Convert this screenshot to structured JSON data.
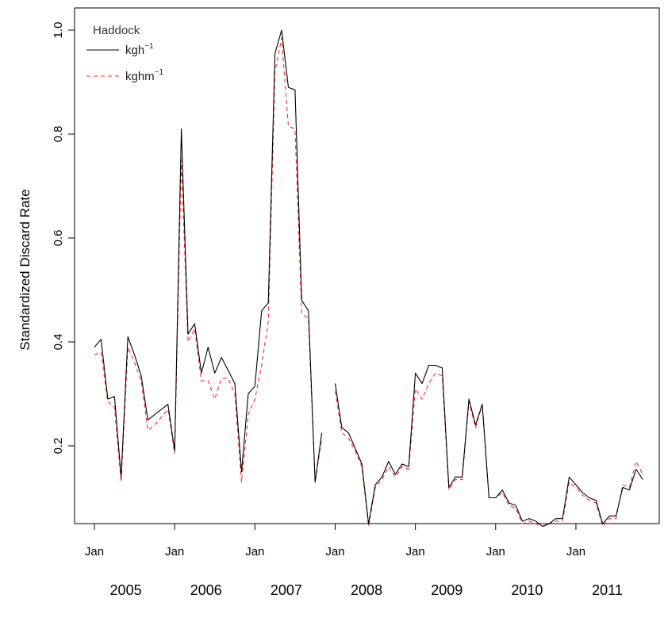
{
  "chart_data": {
    "type": "line",
    "title": "",
    "xlabel": "",
    "ylabel": "Standardized Discard Rate",
    "ylim": [
      0,
      1.0
    ],
    "xlim_months": [
      0,
      83
    ],
    "y_ticks": [
      0.2,
      0.4,
      0.6,
      0.8,
      1.0
    ],
    "y_tick_labels": [
      "0.2",
      "0.4",
      "0.6",
      "0.8",
      "1.0"
    ],
    "x_tick_months": [
      0,
      12,
      24,
      36,
      48,
      60,
      72
    ],
    "x_tick_label": "Jan",
    "years": [
      "2005",
      "2006",
      "2007",
      "2008",
      "2009",
      "2010",
      "2011"
    ],
    "grid": false,
    "legend": {
      "title": "Haddock",
      "position": "top-left",
      "entries": [
        {
          "base": "kgh",
          "sup": "−1",
          "color": "#000000",
          "dash": "solid"
        },
        {
          "base": "kghm",
          "sup": "−1",
          "color": "#ff2a2a",
          "dash": "dashed"
        }
      ]
    },
    "series": [
      {
        "name": "kgh⁻¹",
        "color": "#000000",
        "dash": "solid",
        "values": [
          0.39,
          0.405,
          0.29,
          0.295,
          0.14,
          0.41,
          0.375,
          0.335,
          0.25,
          0.26,
          0.27,
          0.28,
          0.19,
          0.81,
          0.415,
          0.435,
          0.34,
          0.39,
          0.34,
          0.37,
          0.345,
          0.32,
          0.15,
          0.3,
          0.315,
          0.46,
          0.475,
          0.955,
          1.0,
          0.89,
          0.885,
          0.48,
          0.46,
          0.13,
          0.225,
          null,
          0.32,
          0.235,
          0.225,
          0.195,
          0.165,
          0.05,
          0.125,
          0.14,
          0.17,
          0.145,
          0.165,
          0.16,
          0.34,
          0.32,
          0.355,
          0.355,
          0.35,
          0.12,
          0.14,
          0.14,
          0.29,
          0.24,
          0.28,
          0.1,
          0.1,
          0.115,
          0.09,
          0.085,
          0.055,
          0.06,
          0.055,
          0.045,
          0.05,
          0.06,
          0.06,
          0.14,
          0.125,
          0.11,
          0.1,
          0.095,
          0.05,
          0.065,
          0.065,
          0.12,
          0.115,
          0.155,
          0.135
        ]
      },
      {
        "name": "kghm⁻¹",
        "color": "#ff2a2a",
        "dash": "dashed",
        "values": [
          0.375,
          0.38,
          0.285,
          0.275,
          0.13,
          0.39,
          0.36,
          0.325,
          0.23,
          0.24,
          0.255,
          0.27,
          0.185,
          0.75,
          0.4,
          0.425,
          0.325,
          0.325,
          0.29,
          0.33,
          0.33,
          0.3,
          0.13,
          0.26,
          0.29,
          0.355,
          0.44,
          0.92,
          0.985,
          0.815,
          0.81,
          0.455,
          0.445,
          0.13,
          0.215,
          null,
          0.305,
          0.225,
          0.215,
          0.19,
          0.16,
          0.045,
          0.12,
          0.135,
          0.16,
          0.14,
          0.16,
          0.155,
          0.31,
          0.29,
          0.32,
          0.34,
          0.335,
          0.115,
          0.135,
          0.135,
          0.285,
          0.235,
          0.28,
          0.1,
          0.1,
          0.11,
          0.085,
          0.08,
          0.05,
          0.055,
          0.05,
          0.045,
          0.05,
          0.055,
          0.055,
          0.13,
          0.12,
          0.105,
          0.095,
          0.09,
          0.045,
          0.06,
          0.06,
          0.125,
          0.12,
          0.17,
          0.145
        ]
      }
    ]
  }
}
